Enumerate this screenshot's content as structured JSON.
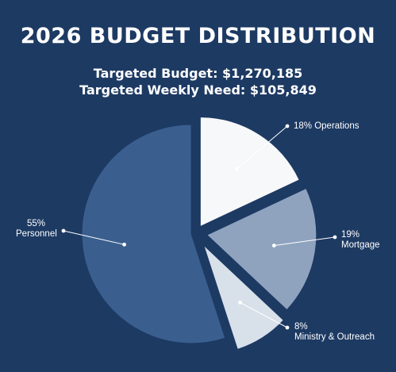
{
  "title": "2026 BUDGET DISTRIBUTION",
  "subtitle_budget": "Targeted Budget: $1,270,185",
  "subtitle_weekly": "Targeted Weekly Need: $105,849",
  "chart_data": {
    "type": "pie",
    "title": "2026 BUDGET DISTRIBUTION",
    "slices": [
      {
        "name": "Operations",
        "value": 18,
        "label": "18% Operations",
        "color": "#f7f8fa"
      },
      {
        "name": "Mortgage",
        "value": 19,
        "label_pct": "19%",
        "label_name": "Mortgage",
        "color": "#8fa3bf"
      },
      {
        "name": "Ministry & Outreach",
        "value": 8,
        "label_pct": "8%",
        "label_name": "Ministry & Outreach",
        "color": "#d8e0ea"
      },
      {
        "name": "Personnel",
        "value": 55,
        "label_pct": "55%",
        "label_name": "Personnel",
        "color": "#3a5f8f"
      }
    ],
    "exploded": true,
    "background": "#1d3a63"
  }
}
